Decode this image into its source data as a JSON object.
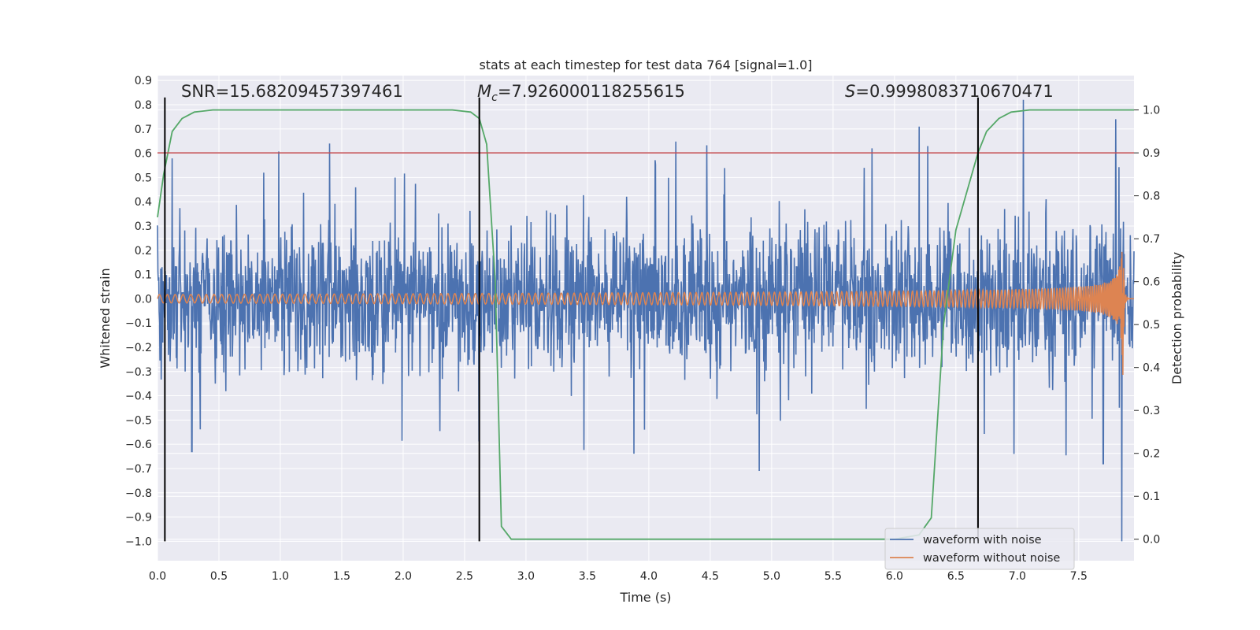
{
  "chart_data": {
    "type": "line",
    "title": "stats at each timestep for test data 764 [signal=1.0]",
    "xlabel": "Time (s)",
    "ylabel_left": "Whitened strain",
    "ylabel_right": "Detection probability",
    "xlim": [
      0.0,
      7.95
    ],
    "ylim_left": [
      -1.08,
      0.92
    ],
    "ylim_right": [
      -0.05,
      1.08
    ],
    "grid": true,
    "x_ticks": [
      "0.0",
      "0.5",
      "1.0",
      "1.5",
      "2.0",
      "2.5",
      "3.0",
      "3.5",
      "4.0",
      "4.5",
      "5.0",
      "5.5",
      "6.0",
      "6.5",
      "7.0",
      "7.5"
    ],
    "y_left_ticks": [
      "0.9",
      "0.8",
      "0.7",
      "0.6",
      "0.5",
      "0.4",
      "0.3",
      "0.2",
      "0.1",
      "0.0",
      "−0.1",
      "−0.2",
      "−0.3",
      "−0.4",
      "−0.5",
      "−0.6",
      "−0.7",
      "−0.8",
      "−0.9",
      "−1.0"
    ],
    "y_right_ticks": [
      "1.0",
      "0.9",
      "0.8",
      "0.7",
      "0.6",
      "0.5",
      "0.4",
      "0.3",
      "0.2",
      "0.1",
      "0.0"
    ],
    "annotations": {
      "snr": "SNR=15.68209457397461",
      "mc_symbol": "M",
      "mc_sub": "c",
      "mc_value": "=7.926000118255615",
      "s_symbol": "S",
      "s_value": "=0.9998083710670471"
    },
    "threshold_right": 0.9,
    "vlines_x": [
      0.06,
      2.62,
      6.68
    ],
    "vlines_range_left": [
      -1.0,
      0.83
    ],
    "series": [
      {
        "name": "waveform with noise",
        "color": "#4c72b0",
        "note": "dense white-noise trace spanning 0 to 7.95 s; typical envelope approx ±0.3, peaks up to 0.82 near 7.05 s and down to −1.0 near 7.85 s",
        "envelope_peaks_max": [
          [
            1.4,
            0.64
          ],
          [
            6.2,
            0.71
          ],
          [
            7.05,
            0.82
          ],
          [
            7.8,
            0.74
          ]
        ],
        "envelope_peaks_min": [
          [
            0.28,
            -0.63
          ],
          [
            4.9,
            -0.71
          ],
          [
            7.7,
            -0.68
          ],
          [
            7.85,
            -1.0
          ]
        ]
      },
      {
        "name": "waveform without noise",
        "color": "#dd8452",
        "note": "chirp: amplitude grows from ~0.02 at 0 s to ~0.35 at 7.85 s, then ringdown to 0 by 7.95 s"
      },
      {
        "name": "detection probability",
        "color": "#55a868",
        "axis": "right",
        "x": [
          0.0,
          0.05,
          0.12,
          0.2,
          0.3,
          0.45,
          0.6,
          1.0,
          1.5,
          2.0,
          2.4,
          2.55,
          2.62,
          2.68,
          2.75,
          2.8,
          2.88,
          3.0,
          4.0,
          5.0,
          6.0,
          6.2,
          6.3,
          6.4,
          6.5,
          6.6,
          6.68,
          6.75,
          6.85,
          6.95,
          7.1,
          7.5,
          7.95
        ],
        "y": [
          0.75,
          0.85,
          0.95,
          0.98,
          0.995,
          1.0,
          1.0,
          1.0,
          1.0,
          1.0,
          1.0,
          0.995,
          0.98,
          0.92,
          0.6,
          0.03,
          0.0,
          0.0,
          0.0,
          0.0,
          0.0,
          0.01,
          0.05,
          0.5,
          0.72,
          0.82,
          0.9,
          0.95,
          0.98,
          0.995,
          1.0,
          1.0,
          1.0
        ]
      }
    ],
    "threshold_color": "#c44e52",
    "legend": {
      "placement": "lower-right",
      "entries": [
        "waveform with noise",
        "waveform without noise"
      ]
    },
    "colors": {
      "plot_bg": "#eaeaf2",
      "grid": "#ffffff",
      "vline": "#000000"
    }
  }
}
